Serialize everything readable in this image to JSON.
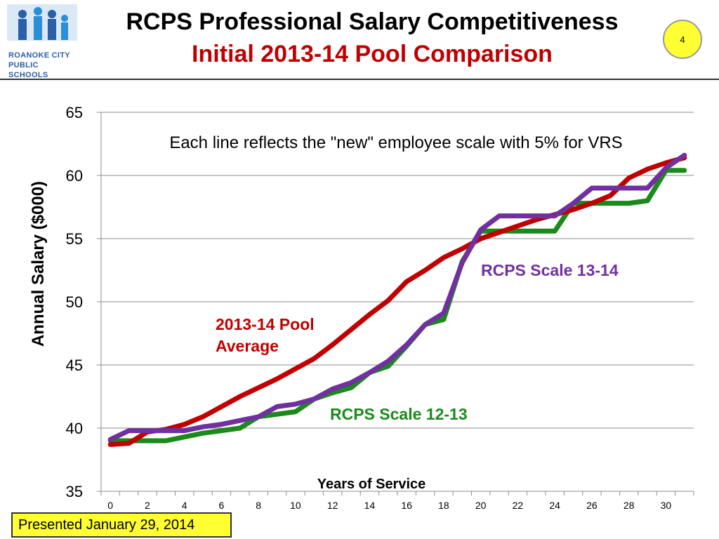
{
  "header": {
    "logo_text_line1": "ROANOKE CITY",
    "logo_text_line2": "PUBLIC SCHOOLS",
    "title": "RCPS Professional Salary Competitiveness",
    "subtitle": "Initial 2013-14 Pool Comparison",
    "page_number": "4"
  },
  "footer": {
    "label": "Presented January 29, 2014"
  },
  "colors": {
    "pool": "#c00000",
    "scale1213": "#1a8a1a",
    "scale1314": "#7030a0",
    "subtitle": "#c00000",
    "badge": "#ffff33"
  },
  "chart_data": {
    "type": "line",
    "title": "",
    "xlabel": "Years of Service",
    "ylabel": "Annual Salary ($000)",
    "annotation": "Each line reflects the \"new\" employee scale with 5% for VRS",
    "xlim": [
      -0.5,
      31.5
    ],
    "ylim": [
      35,
      65
    ],
    "yticks": [
      35,
      40,
      45,
      50,
      55,
      60,
      65
    ],
    "xticks": [
      0,
      2,
      4,
      6,
      8,
      10,
      12,
      14,
      16,
      18,
      20,
      22,
      24,
      26,
      28,
      30
    ],
    "grid": true,
    "series": [
      {
        "name": "RCPS Scale 12-13",
        "label_lines": [
          "RCPS Scale 12-13"
        ],
        "color": "#1a8a1a",
        "label_color": "#1a8a1a",
        "x": [
          0,
          1,
          2,
          3,
          4,
          5,
          6,
          7,
          8,
          9,
          10,
          11,
          12,
          13,
          14,
          15,
          16,
          17,
          18,
          19,
          20,
          21,
          22,
          23,
          24,
          25,
          26,
          27,
          28,
          29,
          30,
          31
        ],
        "y": [
          39.0,
          39.0,
          39.0,
          39.0,
          39.3,
          39.6,
          39.8,
          40.0,
          40.9,
          41.1,
          41.3,
          42.3,
          42.8,
          43.2,
          44.4,
          44.9,
          46.5,
          48.2,
          48.6,
          53.2,
          55.6,
          55.6,
          55.6,
          55.6,
          55.6,
          57.8,
          57.8,
          57.8,
          57.8,
          58.0,
          60.4,
          60.4
        ]
      },
      {
        "name": "2013-14 Pool Average",
        "label_lines": [
          "2013-14 Pool",
          "Average"
        ],
        "color": "#c00000",
        "label_color": "#c00000",
        "x": [
          0,
          1,
          2,
          3,
          4,
          5,
          6,
          7,
          8,
          9,
          10,
          11,
          12,
          13,
          14,
          15,
          16,
          17,
          18,
          19,
          20,
          21,
          22,
          23,
          24,
          25,
          26,
          27,
          28,
          29,
          30,
          31
        ],
        "y": [
          38.7,
          38.8,
          39.7,
          39.9,
          40.3,
          40.9,
          41.7,
          42.5,
          43.2,
          43.9,
          44.7,
          45.5,
          46.6,
          47.8,
          49.0,
          50.1,
          51.6,
          52.5,
          53.5,
          54.2,
          55.0,
          55.5,
          56.0,
          56.5,
          56.9,
          57.3,
          57.8,
          58.4,
          59.8,
          60.5,
          61.0,
          61.4
        ]
      },
      {
        "name": "RCPS Scale 13-14",
        "label_lines": [
          "RCPS Scale 13-14"
        ],
        "color": "#7030a0",
        "label_color": "#7030a0",
        "x": [
          0,
          1,
          2,
          3,
          4,
          5,
          6,
          7,
          8,
          9,
          10,
          11,
          12,
          13,
          14,
          15,
          16,
          17,
          18,
          19,
          20,
          21,
          22,
          23,
          24,
          25,
          26,
          27,
          28,
          29,
          30,
          31
        ],
        "y": [
          39.1,
          39.8,
          39.8,
          39.8,
          39.8,
          40.1,
          40.3,
          40.6,
          40.9,
          41.7,
          41.9,
          42.3,
          43.1,
          43.6,
          44.4,
          45.3,
          46.6,
          48.2,
          49.1,
          53.1,
          55.7,
          56.8,
          56.8,
          56.8,
          56.8,
          57.8,
          59.0,
          59.0,
          59.0,
          59.0,
          60.6,
          61.6
        ]
      }
    ]
  }
}
